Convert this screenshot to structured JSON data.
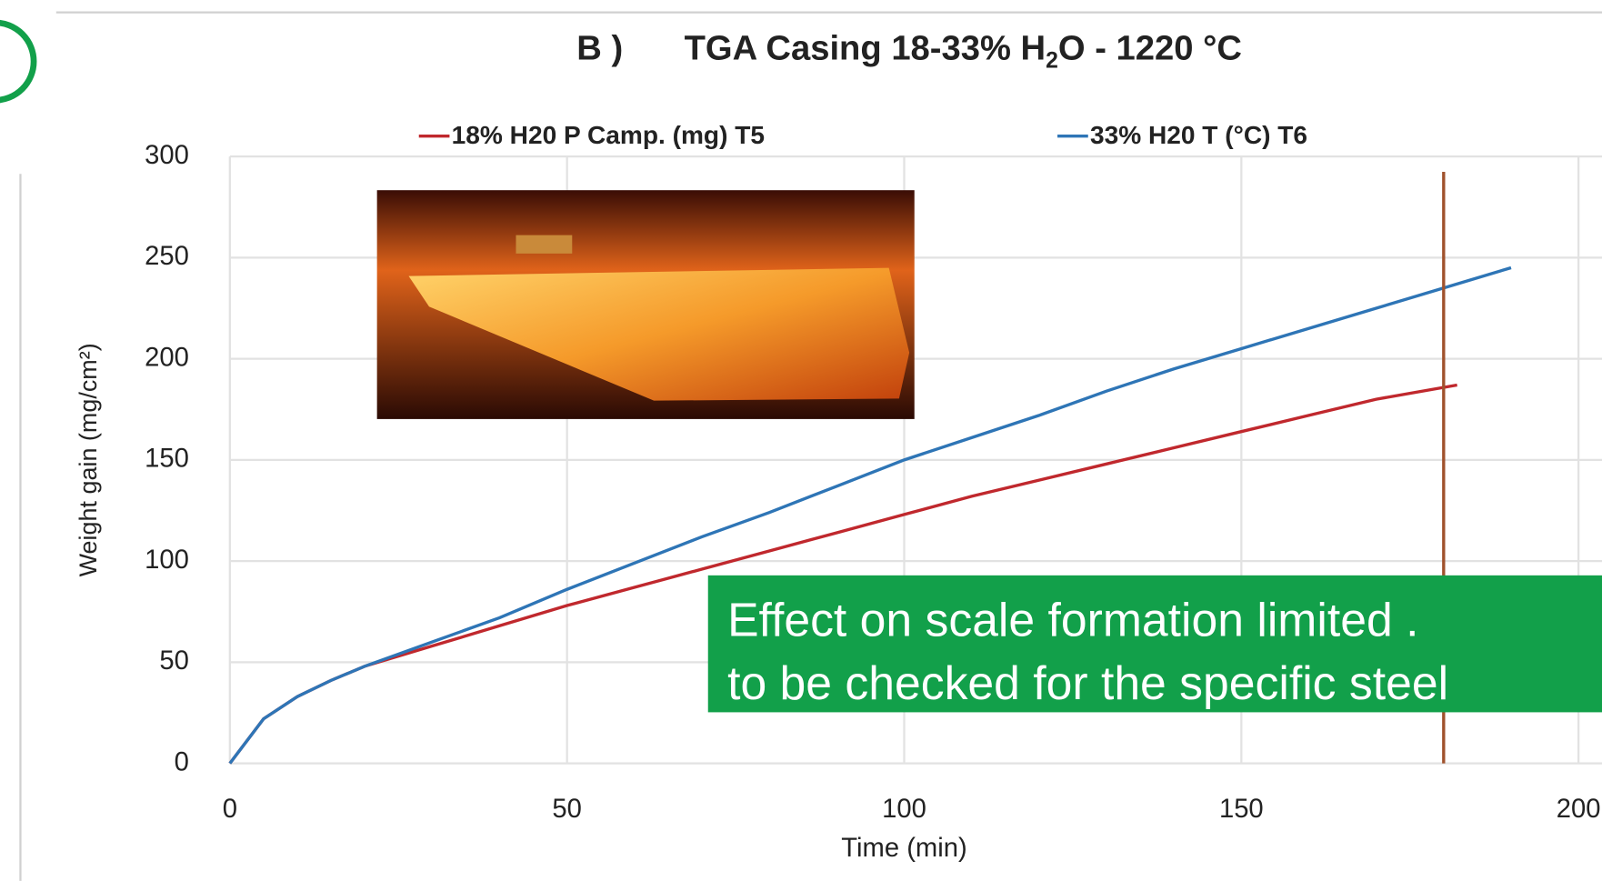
{
  "chart_data": {
    "type": "line",
    "title_label": "B )",
    "title_parts": [
      "TGA Casing 18-33% H",
      "2",
      "O - 1220 °C"
    ],
    "x_label": "Time (min)",
    "y_label": "Weight gain (mg/cm²)",
    "xlim": [
      0,
      200
    ],
    "xticks": [
      0,
      50,
      100,
      150,
      200
    ],
    "ylim": [
      0,
      300
    ],
    "yticks": [
      0,
      50,
      100,
      150,
      200,
      250,
      300
    ],
    "grid": true,
    "legend": "top",
    "series": [
      {
        "name": "18% H20 P Camp. (mg) T5",
        "color": "#c0282d",
        "x": [
          0,
          5,
          10,
          15,
          20,
          30,
          40,
          50,
          60,
          70,
          80,
          90,
          100,
          110,
          120,
          130,
          140,
          150,
          160,
          170,
          182
        ],
        "values": [
          0,
          22,
          33,
          41,
          48,
          58,
          68,
          78,
          87,
          96,
          105,
          114,
          123,
          132,
          140,
          148,
          156,
          164,
          172,
          180,
          187
        ]
      },
      {
        "name": "33% H20 T (°C) T6",
        "color": "#2e75b6",
        "x": [
          0,
          5,
          10,
          15,
          20,
          30,
          40,
          50,
          60,
          70,
          80,
          90,
          100,
          110,
          120,
          130,
          140,
          150,
          160,
          170,
          180,
          190
        ],
        "values": [
          0,
          22,
          33,
          41,
          48,
          60,
          72,
          86,
          99,
          112,
          124,
          137,
          150,
          161,
          172,
          184,
          195,
          205,
          215,
          225,
          235,
          245
        ]
      }
    ],
    "vline": {
      "x": 180,
      "color": "#a0522d"
    },
    "annotation": {
      "lines": [
        "Effect on scale formation  limited .",
        "to be checked for the specific steel"
      ],
      "color": "#12a04a"
    }
  }
}
